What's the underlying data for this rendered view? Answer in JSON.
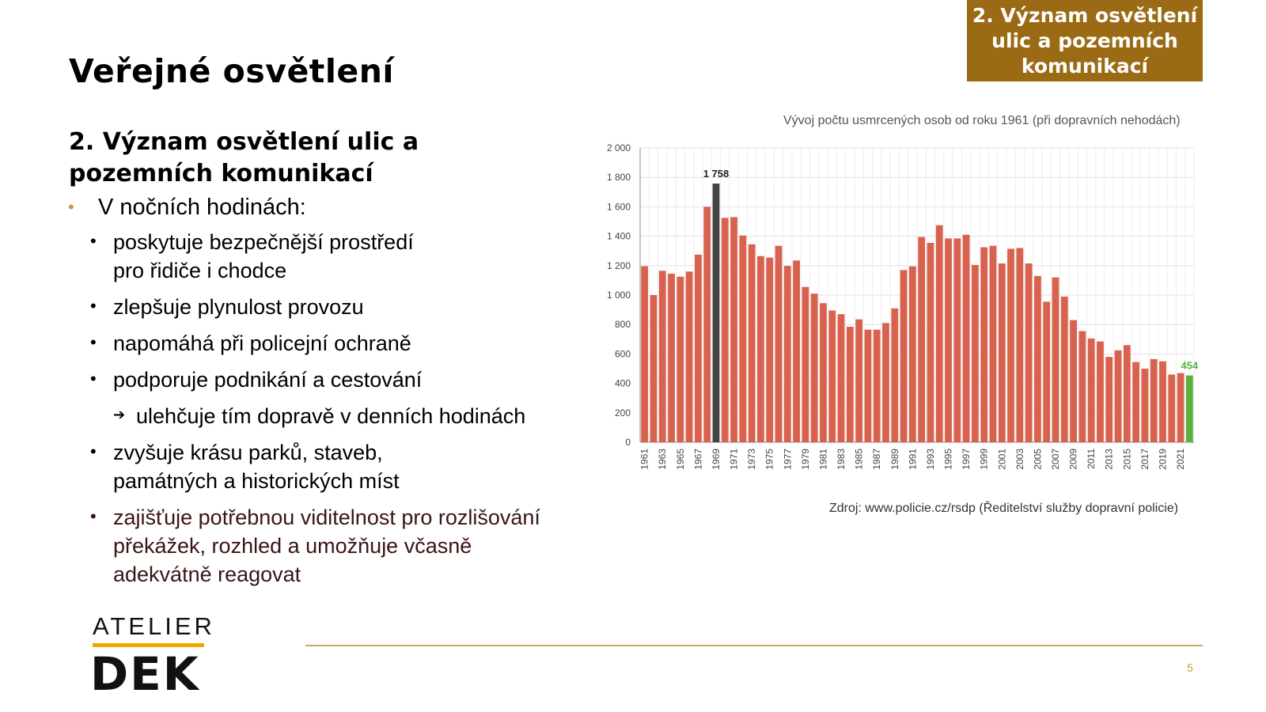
{
  "header": {
    "section_lines": [
      "2. Význam osvětlení",
      "ulic a pozemních",
      "komunikací"
    ],
    "title": "Veřejné osvětlení"
  },
  "content": {
    "subtitle_lines": [
      "2. Význam osvětlení ulic a",
      "pozemních komunikací"
    ],
    "main_bullet": "V nočních hodinách:",
    "items": [
      [
        "poskytuje bezpečnější prostředí",
        "pro řidiče i chodce"
      ],
      [
        "zlepšuje plynulost provozu"
      ],
      [
        "napomáhá při policejní ochraně"
      ],
      [
        "podporuje podnikání a cestování"
      ]
    ],
    "sub_item": "ulehčuje tím dopravě v denních hodinách",
    "items_after": [
      [
        "zvyšuje krásu parků, staveb,",
        "památných a historických míst"
      ],
      [
        "zajišťuje potřebnou viditelnost pro rozlišování",
        "překážek, rozhled a umožňuje včasně",
        "adekvátně reagovat"
      ]
    ]
  },
  "chart_data": {
    "type": "bar",
    "title": "Vývoj počtu usmrcených osob od roku 1961 (při dopravních nehodách)",
    "categories": [
      "1961",
      "1962",
      "1963",
      "1964",
      "1965",
      "1966",
      "1967",
      "1968",
      "1969",
      "1970",
      "1971",
      "1972",
      "1973",
      "1974",
      "1975",
      "1976",
      "1977",
      "1978",
      "1979",
      "1980",
      "1981",
      "1982",
      "1983",
      "1984",
      "1985",
      "1986",
      "1987",
      "1988",
      "1989",
      "1990",
      "1991",
      "1992",
      "1993",
      "1994",
      "1995",
      "1996",
      "1997",
      "1998",
      "1999",
      "2000",
      "2001",
      "2002",
      "2003",
      "2004",
      "2005",
      "2006",
      "2007",
      "2008",
      "2009",
      "2010",
      "2011",
      "2012",
      "2013",
      "2014",
      "2015",
      "2016",
      "2017",
      "2018",
      "2019",
      "2020",
      "2021",
      "2022"
    ],
    "values": [
      1196,
      1000,
      1165,
      1145,
      1125,
      1160,
      1275,
      1600,
      1758,
      1525,
      1530,
      1405,
      1345,
      1265,
      1255,
      1335,
      1198,
      1235,
      1055,
      1010,
      945,
      895,
      870,
      785,
      835,
      765,
      765,
      810,
      910,
      1170,
      1195,
      1395,
      1355,
      1475,
      1385,
      1385,
      1410,
      1205,
      1325,
      1335,
      1215,
      1315,
      1320,
      1215,
      1130,
      955,
      1120,
      990,
      830,
      755,
      705,
      685,
      580,
      625,
      660,
      545,
      500,
      565,
      550,
      460,
      470,
      454
    ],
    "ylim": [
      0,
      2000
    ],
    "yticks": [
      "0",
      "200",
      "400",
      "600",
      "800",
      "1 000",
      "1 200",
      "1 400",
      "1 600",
      "1 800",
      "2 000"
    ],
    "highlights": {
      "1969": "#444444",
      "2022": "#5ab13f"
    },
    "default_color": "#d9624f",
    "data_labels": {
      "1969": "1 758",
      "2022": "454"
    },
    "grid": true
  },
  "source_text": "Zdroj: www.policie.cz/rsdp (Ředitelství služby dopravní policie)",
  "footer": {
    "logo_top": "ATELIER",
    "logo_main": "DEK",
    "page_number": "5"
  },
  "colors": {
    "accent": "#9a6b14",
    "logo_bar": "#f0a800",
    "rule": "#c9a76a"
  }
}
